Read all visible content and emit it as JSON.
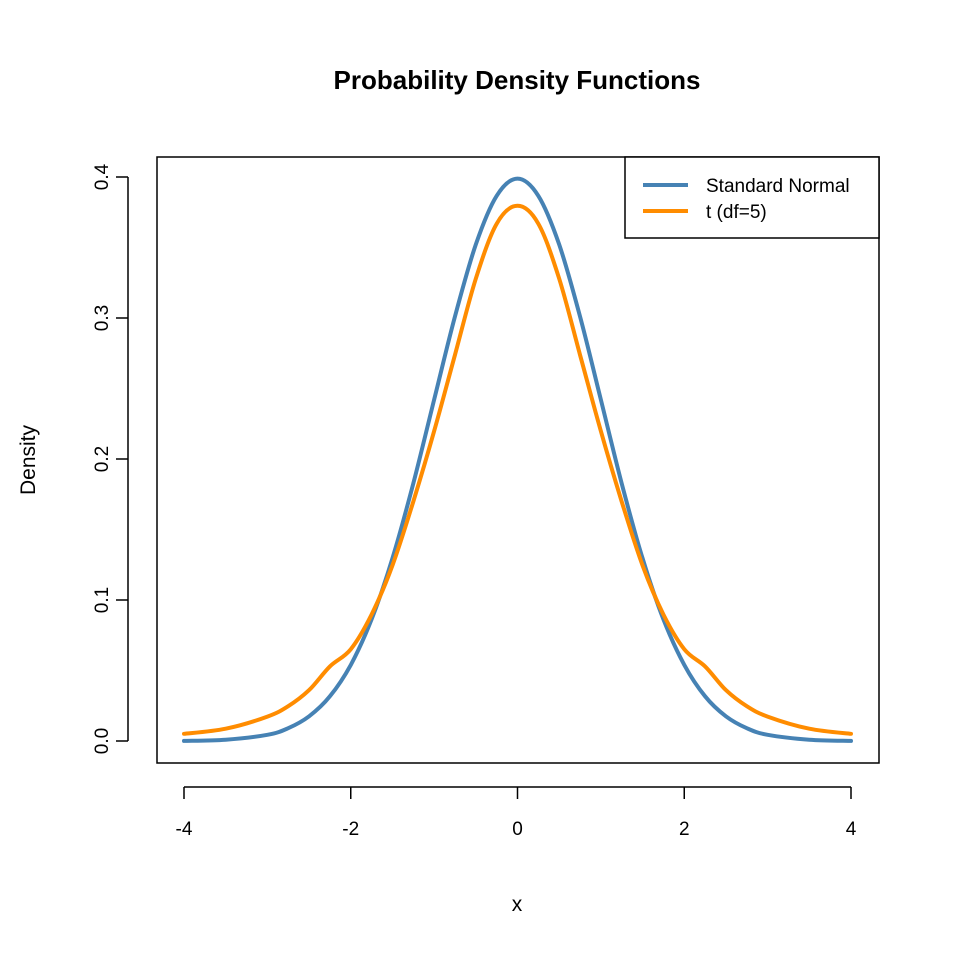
{
  "chart_data": {
    "type": "line",
    "title": "Probability Density Functions",
    "xlabel": "x",
    "ylabel": "Density",
    "xlim": [
      -4,
      4
    ],
    "ylim": [
      0,
      0.4
    ],
    "x_ticks": [
      -4,
      -2,
      0,
      2,
      4
    ],
    "x_tick_labels": [
      "-4",
      "-2",
      "0",
      "2",
      "4"
    ],
    "y_ticks": [
      0.0,
      0.1,
      0.2,
      0.3,
      0.4
    ],
    "y_tick_labels": [
      "0.0",
      "0.1",
      "0.2",
      "0.3",
      "0.4"
    ],
    "grid": false,
    "legend_position": "top-right",
    "x": [
      -4,
      -3.5,
      -3,
      -2.75,
      -2.5,
      -2.25,
      -2,
      -1.75,
      -1.5,
      -1.25,
      -1,
      -0.75,
      -0.5,
      -0.25,
      0,
      0.25,
      0.5,
      0.75,
      1,
      1.25,
      1.5,
      1.75,
      2,
      2.25,
      2.5,
      2.75,
      3,
      3.5,
      4
    ],
    "series": [
      {
        "name": "Standard Normal",
        "color": "#4682B4",
        "values": [
          0.0001,
          0.0009,
          0.0044,
          0.0091,
          0.0175,
          0.0317,
          0.054,
          0.0863,
          0.1295,
          0.1826,
          0.242,
          0.3011,
          0.3521,
          0.3867,
          0.3989,
          0.3867,
          0.3521,
          0.3011,
          0.242,
          0.1826,
          0.1295,
          0.0863,
          0.054,
          0.0317,
          0.0175,
          0.0091,
          0.0044,
          0.0009,
          0.0001
        ]
      },
      {
        "name": "t (df=5)",
        "color": "#FF8C00",
        "values": [
          0.0051,
          0.0087,
          0.0173,
          0.0247,
          0.0361,
          0.0529,
          0.0651,
          0.0897,
          0.1245,
          0.1698,
          0.2197,
          0.2739,
          0.3279,
          0.3669,
          0.3796,
          0.3669,
          0.3279,
          0.2739,
          0.2197,
          0.1698,
          0.1245,
          0.0897,
          0.0651,
          0.0529,
          0.0361,
          0.0247,
          0.0173,
          0.0087,
          0.0051
        ]
      }
    ]
  }
}
